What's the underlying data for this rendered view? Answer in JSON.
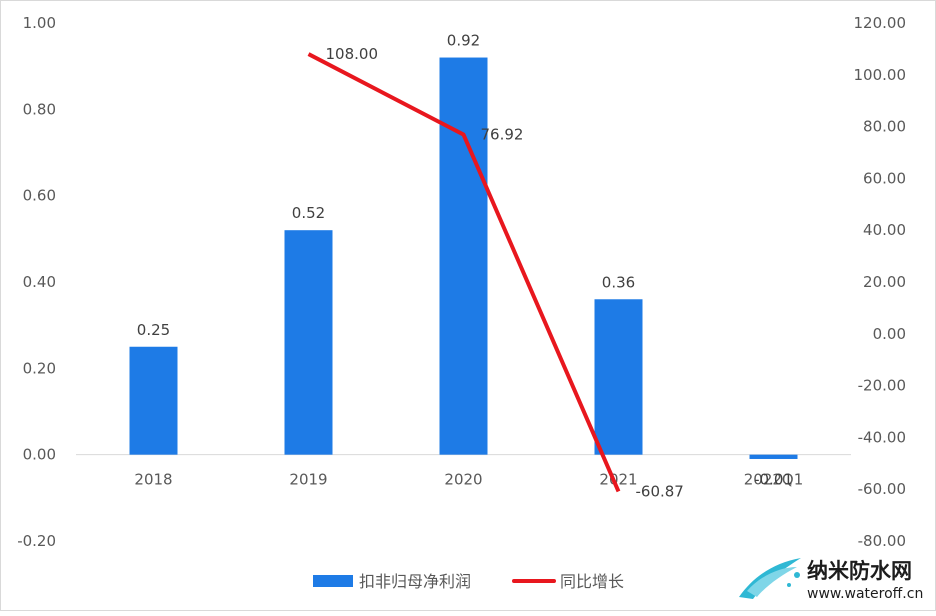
{
  "chart_data": {
    "type": "bar",
    "categories": [
      "2018",
      "2019",
      "2020",
      "2021",
      "2022Q1"
    ],
    "series": [
      {
        "name": "扣非归母净利润",
        "type": "bar",
        "axis": "left",
        "values": [
          0.25,
          0.52,
          0.92,
          0.36,
          -0.01
        ],
        "labels": [
          "0.25",
          "0.52",
          "0.92",
          "0.36",
          "-0.01"
        ],
        "color": "#1e7be6"
      },
      {
        "name": "同比增长",
        "type": "line",
        "axis": "right",
        "values": [
          null,
          108.0,
          76.92,
          -60.87,
          null
        ],
        "labels": [
          "",
          "108.00",
          "76.92",
          "-60.87",
          ""
        ],
        "color": "#e8171e"
      }
    ],
    "y_left": {
      "ylim": [
        -0.2,
        1.0
      ],
      "ticks": [
        "-0.20",
        "0.00",
        "0.20",
        "0.40",
        "0.60",
        "0.80",
        "1.00"
      ]
    },
    "y_right": {
      "ylim": [
        -80,
        120
      ],
      "ticks": [
        "-80.00",
        "-60.00",
        "-40.00",
        "-20.00",
        "0.00",
        "20.00",
        "40.00",
        "60.00",
        "80.00",
        "100.00",
        "120.00"
      ]
    },
    "x_tick_labels": [
      "2018",
      "2019",
      "2020",
      "2021",
      "2022Q1"
    ],
    "grid": false,
    "legend_position": "bottom"
  },
  "watermark": {
    "title": "纳米防水网",
    "url": "www.wateroff.cn",
    "icon": "water-splash-logo-icon"
  }
}
